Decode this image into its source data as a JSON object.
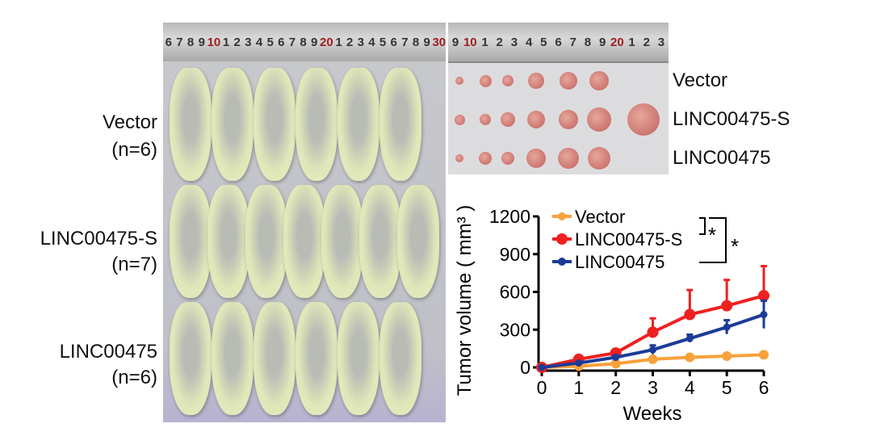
{
  "mice_photo": {
    "ruler_labels": [
      "6",
      "7",
      "8",
      "9",
      "10",
      "1",
      "2",
      "3",
      "4",
      "5",
      "6",
      "7",
      "8",
      "9",
      "20",
      "1",
      "2",
      "3",
      "4",
      "5",
      "6",
      "7",
      "8",
      "9",
      "30"
    ],
    "rows": [
      6,
      7,
      6
    ]
  },
  "tumor_photo": {
    "ruler_labels": [
      "9",
      "10",
      "1",
      "2",
      "3",
      "4",
      "5",
      "6",
      "7",
      "8",
      "9",
      "20",
      "1",
      "2",
      "3"
    ],
    "rows": [
      6,
      7,
      6
    ]
  },
  "left_labels": [
    {
      "name": "Vector",
      "n": "(n=6)"
    },
    {
      "name": "LINC00475-S",
      "n": "(n=7)"
    },
    {
      "name": "LINC00475",
      "n": "(n=6)"
    }
  ],
  "right_labels": [
    "Vector",
    "LINC00475-S",
    "LINC00475"
  ],
  "chart_data": {
    "type": "line",
    "xlabel": "Weeks",
    "ylabel": "Tumor volume ( mm³ )",
    "x": [
      0,
      1,
      2,
      3,
      4,
      5,
      6
    ],
    "xticks": [
      "0",
      "1",
      "2",
      "3",
      "4",
      "5",
      "6"
    ],
    "yticks": [
      "0",
      "300",
      "600",
      "900",
      "1200"
    ],
    "ylim": [
      0,
      1200
    ],
    "xlim": [
      0,
      6
    ],
    "legend_position": "top-left",
    "significance": [
      "*",
      "*"
    ],
    "series": [
      {
        "name": "Vector",
        "color": "#f7a13b",
        "values": [
          0,
          10,
          30,
          65,
          80,
          90,
          100
        ],
        "errors": [
          0,
          3,
          5,
          8,
          8,
          8,
          10
        ]
      },
      {
        "name": "LINC00475-S",
        "color": "#ee2020",
        "values": [
          0,
          65,
          115,
          280,
          420,
          490,
          570
        ],
        "errors": [
          0,
          15,
          25,
          110,
          195,
          205,
          235
        ]
      },
      {
        "name": "LINC00475",
        "color": "#1c3b98",
        "values": [
          0,
          35,
          80,
          140,
          230,
          320,
          420
        ],
        "errors": [
          0,
          10,
          15,
          35,
          30,
          55,
          110
        ]
      }
    ]
  }
}
